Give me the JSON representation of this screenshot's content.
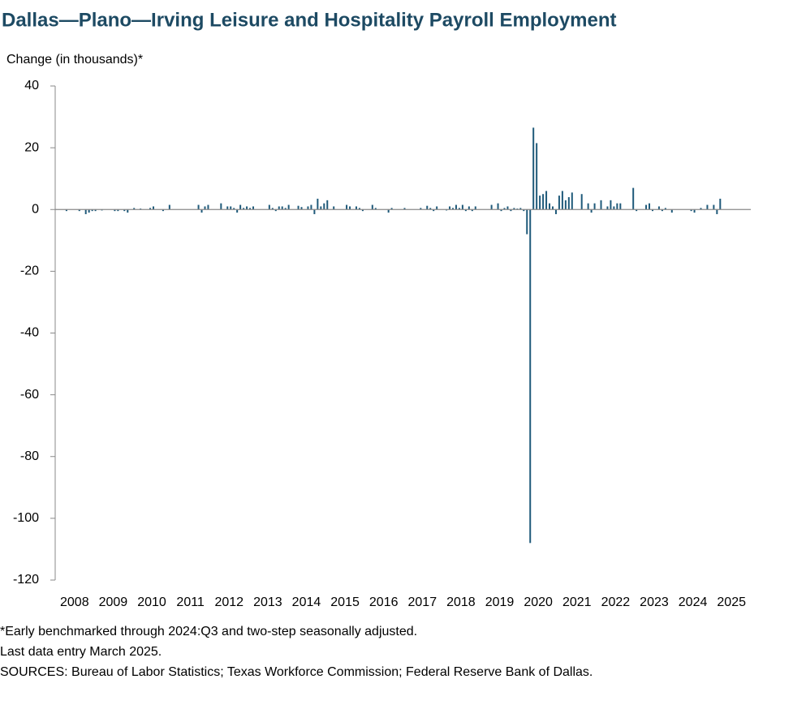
{
  "chart_data": {
    "type": "bar",
    "title": "Dallas—Plano—Irving Leisure and Hospitality Payroll Employment",
    "y_label": "Change (in thousands)*",
    "notes": [
      "*Early benchmarked through 2024:Q3 and two-step seasonally adjusted.",
      "Last data entry March 2025.",
      "SOURCES: Bureau of Labor Statistics; Texas Workforce Commission; Federal Reserve Bank of Dallas."
    ],
    "color": "#1f5a7a",
    "grid": false,
    "ylim": [
      -120,
      40
    ],
    "yticks": [
      40,
      20,
      0,
      -20,
      -40,
      -60,
      -80,
      -100,
      -120
    ],
    "categories": [
      "2008",
      null,
      null,
      null,
      null,
      null,
      null,
      null,
      null,
      null,
      null,
      null,
      "2009",
      null,
      null,
      null,
      null,
      null,
      null,
      null,
      null,
      null,
      null,
      null,
      "2010",
      null,
      null,
      null,
      null,
      null,
      null,
      null,
      null,
      null,
      null,
      null,
      "2011",
      null,
      null,
      null,
      null,
      null,
      null,
      null,
      null,
      null,
      null,
      null,
      "2012",
      null,
      null,
      null,
      null,
      null,
      null,
      null,
      null,
      null,
      null,
      null,
      "2013",
      null,
      null,
      null,
      null,
      null,
      null,
      null,
      null,
      null,
      null,
      null,
      "2014",
      null,
      null,
      null,
      null,
      null,
      null,
      null,
      null,
      null,
      null,
      null,
      "2015",
      null,
      null,
      null,
      null,
      null,
      null,
      null,
      null,
      null,
      null,
      null,
      "2016",
      null,
      null,
      null,
      null,
      null,
      null,
      null,
      null,
      null,
      null,
      null,
      "2017",
      null,
      null,
      null,
      null,
      null,
      null,
      null,
      null,
      null,
      null,
      null,
      "2018",
      null,
      null,
      null,
      null,
      null,
      null,
      null,
      null,
      null,
      null,
      null,
      "2019",
      null,
      null,
      null,
      null,
      null,
      null,
      null,
      null,
      null,
      null,
      null,
      "2020",
      null,
      null,
      null,
      null,
      null,
      null,
      null,
      null,
      null,
      null,
      null,
      "2021",
      null,
      null,
      null,
      null,
      null,
      null,
      null,
      null,
      null,
      null,
      null,
      "2022",
      null,
      null,
      null,
      null,
      null,
      null,
      null,
      null,
      null,
      null,
      null,
      "2023",
      null,
      null,
      null,
      null,
      null,
      null,
      null,
      null,
      null,
      null,
      null,
      "2024",
      null,
      null,
      null,
      null,
      null,
      null,
      null,
      null,
      null,
      null,
      null,
      "2025",
      null,
      null
    ],
    "values": [
      0,
      0,
      0,
      -0.5,
      0,
      0,
      0,
      -0.5,
      0,
      -1.5,
      -1,
      -0.5,
      -0.5,
      0,
      -0.3,
      0,
      0,
      0,
      -0.5,
      -0.5,
      0,
      -0.5,
      -1,
      0,
      0.5,
      0,
      0.3,
      0,
      0,
      0.5,
      1,
      0,
      0,
      -0.5,
      0,
      1.5,
      0,
      0,
      0,
      0,
      0,
      0,
      0,
      0,
      1.5,
      -1,
      1,
      1.5,
      0,
      0,
      0,
      2,
      0,
      1,
      1,
      0.5,
      -1,
      1.5,
      0.5,
      1,
      0.5,
      1,
      0,
      0,
      0,
      0,
      1.5,
      0.5,
      -0.5,
      1,
      1,
      0.5,
      1.5,
      0,
      0,
      1.2,
      0.8,
      0,
      1,
      1.5,
      -1.5,
      3.5,
      1,
      2,
      3,
      0,
      1,
      0,
      0,
      0,
      1.5,
      1,
      0,
      1,
      0.5,
      -0.5,
      0,
      0,
      1.5,
      0.5,
      0,
      0,
      0,
      -1,
      0.5,
      0,
      0,
      0,
      0.5,
      0,
      0,
      0,
      0,
      0.5,
      0,
      1.2,
      0.5,
      -0.5,
      1,
      0,
      0,
      -0.3,
      1,
      0.5,
      1.5,
      0.5,
      1.5,
      -0.5,
      1,
      -0.5,
      1,
      0,
      0,
      0,
      0,
      1.5,
      0,
      2,
      -0.5,
      0.5,
      1,
      -0.5,
      0.5,
      0.3,
      0.5,
      -0.5,
      -8,
      -108,
      26.5,
      21.5,
      4.5,
      5,
      6,
      2,
      1,
      -1.5,
      4.5,
      6,
      3,
      4,
      5.5,
      0,
      0,
      5,
      0,
      2,
      -1,
      2,
      0,
      3,
      0,
      1,
      3,
      1,
      2,
      2,
      0,
      0,
      0,
      7,
      -0.5,
      0,
      0,
      1.5,
      2,
      -0.5,
      0,
      1,
      -0.5,
      0.5,
      0,
      -1,
      0,
      0,
      0,
      0,
      0,
      -0.5,
      -1,
      0,
      0.5,
      0,
      1.5,
      0,
      1.5,
      -1.5,
      3.5
    ]
  }
}
